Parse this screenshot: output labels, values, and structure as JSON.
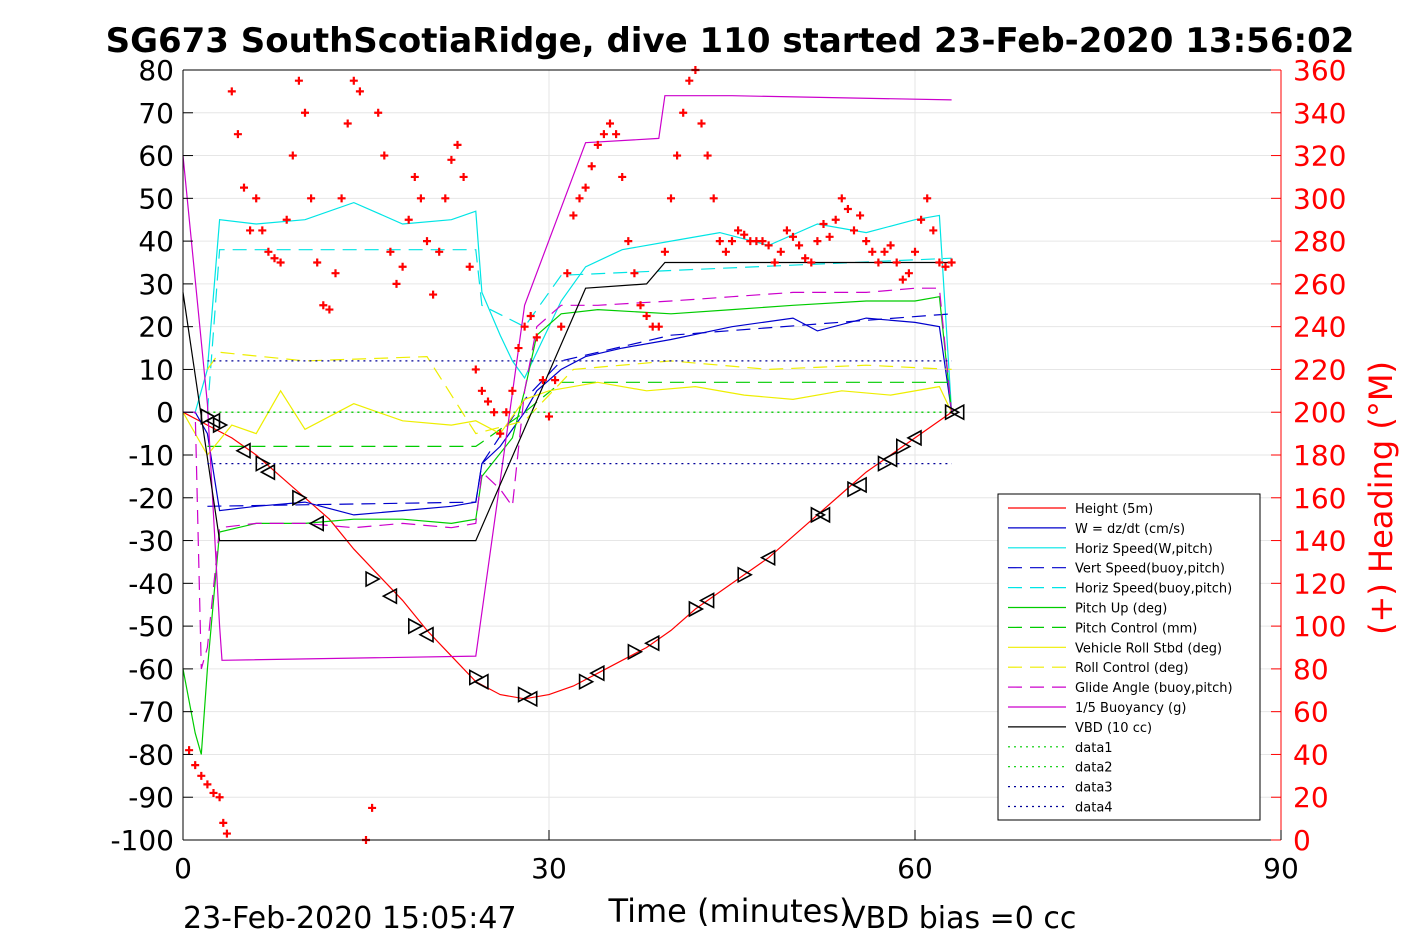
{
  "chart_data": {
    "type": "line",
    "title": "SG673 SouthScotiaRidge, dive 110 started 23-Feb-2020 13:56:02",
    "xlabel": "Time (minutes)",
    "ylabel_right": "(+) Heading (°M)",
    "footer_left": "23-Feb-2020 15:05:47",
    "footer_right": "VBD bias =0 cc",
    "xlim": [
      0,
      90
    ],
    "ylim": [
      -100,
      80
    ],
    "ylim_right": [
      0,
      360
    ],
    "xticks": [
      "0",
      "30",
      "60",
      "90"
    ],
    "yticks": [
      "80",
      "70",
      "60",
      "50",
      "40",
      "30",
      "20",
      "10",
      "0",
      "-10",
      "-20",
      "-30",
      "-40",
      "-50",
      "-60",
      "-70",
      "-80",
      "-90",
      "-100"
    ],
    "yticks_right": [
      "360",
      "340",
      "320",
      "300",
      "280",
      "260",
      "240",
      "220",
      "200",
      "180",
      "160",
      "140",
      "120",
      "100",
      "80",
      "60",
      "40",
      "20",
      "0"
    ],
    "grid": true,
    "legend_position": "bottom-right",
    "series": [
      {
        "name": "Height (5m)",
        "color": "#ff0000",
        "style": "solid",
        "x": [
          0,
          2,
          4,
          6,
          8,
          10,
          12,
          14,
          16,
          18,
          20,
          22,
          24,
          26,
          28,
          30,
          32,
          34,
          36,
          38,
          40,
          42,
          44,
          46,
          48,
          50,
          52,
          54,
          56,
          58,
          60,
          62,
          63
        ],
        "y": [
          0,
          -3,
          -6,
          -10,
          -15,
          -20,
          -25,
          -32,
          -38,
          -44,
          -51,
          -57,
          -63,
          -66,
          -67,
          -66,
          -64,
          -61,
          -58,
          -55,
          -51,
          -46,
          -42,
          -38,
          -34,
          -29,
          -24,
          -19,
          -14,
          -10,
          -6,
          -2,
          0
        ]
      },
      {
        "name": "W = dz/dt (cm/s)",
        "color": "#0000cc",
        "style": "solid",
        "x": [
          0,
          1,
          2,
          3,
          6,
          10,
          14,
          18,
          22,
          24,
          24.5,
          26,
          28,
          29,
          31,
          33,
          36,
          40,
          45,
          50,
          52,
          56,
          60,
          62,
          63
        ],
        "y": [
          0,
          0,
          -5,
          -23,
          -22,
          -21,
          -24,
          -23,
          -22,
          -21,
          -12,
          -8,
          0,
          5,
          10,
          13,
          15,
          17,
          20,
          22,
          19,
          22,
          21,
          20,
          0
        ]
      },
      {
        "name": "Horiz Speed(W,pitch)",
        "color": "#00e5e5",
        "style": "solid",
        "x": [
          0,
          1,
          2,
          3,
          6,
          10,
          14,
          18,
          22,
          24,
          24.5,
          26,
          27,
          28,
          29,
          31,
          33,
          36,
          40,
          44,
          48,
          52,
          56,
          60,
          62,
          63
        ],
        "y": [
          0,
          0,
          10,
          45,
          44,
          45,
          49,
          44,
          45,
          47,
          28,
          18,
          12,
          8,
          14,
          26,
          34,
          38,
          40,
          42,
          39,
          44,
          42,
          45,
          46,
          0
        ]
      },
      {
        "name": "Vert Speed(buoy,pitch)",
        "color": "#0000cc",
        "style": "dash",
        "x": [
          2,
          24,
          24.5,
          28,
          31,
          40,
          63
        ],
        "y": [
          -22,
          -21,
          -12,
          3,
          12,
          18,
          23
        ]
      },
      {
        "name": "Horiz Speed(buoy,pitch)",
        "color": "#00e5e5",
        "style": "dash",
        "x": [
          2,
          3,
          24,
          24.5,
          28,
          31,
          63
        ],
        "y": [
          0,
          38,
          38,
          25,
          20,
          32,
          36
        ]
      },
      {
        "name": "Pitch Up (deg)",
        "color": "#00cc00",
        "style": "solid",
        "x": [
          0,
          1,
          1.5,
          2,
          3,
          6,
          10,
          14,
          18,
          22,
          24,
          24.5,
          27,
          28,
          29,
          31,
          34,
          40,
          45,
          50,
          56,
          60,
          62,
          63
        ],
        "y": [
          -60,
          -75,
          -80,
          -60,
          -28,
          -26,
          -26,
          -25,
          -25,
          -26,
          -25,
          -15,
          -6,
          5,
          18,
          23,
          24,
          23,
          24,
          25,
          26,
          26,
          27,
          0
        ]
      },
      {
        "name": "Pitch Control (mm)",
        "color": "#00cc00",
        "style": "dash",
        "x": [
          2,
          24,
          24.5,
          28,
          31,
          63
        ],
        "y": [
          -8,
          -8,
          -7,
          0,
          7,
          7
        ]
      },
      {
        "name": "Vehicle Roll Stbd (deg)",
        "color": "#eeee00",
        "style": "solid",
        "x": [
          0,
          2,
          4,
          6,
          8,
          10,
          14,
          18,
          22,
          24,
          26,
          28,
          30,
          34,
          38,
          42,
          46,
          50,
          54,
          58,
          62,
          63
        ],
        "y": [
          0,
          -10,
          -3,
          -5,
          5,
          -4,
          2,
          -2,
          -3,
          -2,
          -5,
          3,
          5,
          7,
          5,
          6,
          4,
          3,
          5,
          4,
          6,
          0
        ]
      },
      {
        "name": "Roll Control (deg)",
        "color": "#eeee00",
        "style": "dash",
        "x": [
          2,
          3,
          10,
          20,
          24,
          28,
          32,
          40,
          48,
          56,
          63
        ],
        "y": [
          10,
          14,
          12,
          13,
          -5,
          -2,
          10,
          12,
          10,
          11,
          10
        ]
      },
      {
        "name": "Glide Angle (buoy,pitch)",
        "color": "#cc00cc",
        "style": "dash",
        "x": [
          0,
          1,
          1.5,
          2,
          3,
          6,
          10,
          14,
          18,
          22,
          24,
          24.5,
          26,
          27,
          28,
          29,
          31,
          34,
          40,
          45,
          50,
          56,
          60,
          62,
          63
        ],
        "y": [
          0,
          0,
          -60,
          -55,
          -27,
          -26,
          -26,
          -27,
          -26,
          -27,
          -26,
          -14,
          -18,
          -22,
          5,
          20,
          25,
          25,
          26,
          27,
          28,
          28,
          29,
          29,
          0
        ]
      },
      {
        "name": "1/5 Buoyancy (g)",
        "color": "#cc00cc",
        "style": "solid",
        "x": [
          0,
          2,
          3,
          3.2,
          24,
          28,
          33,
          39,
          39.5,
          45,
          63
        ],
        "y": [
          60,
          2,
          -50,
          -58,
          -57,
          25,
          63,
          64,
          74,
          74,
          73
        ]
      },
      {
        "name": "VBD (10 cc)",
        "color": "#000000",
        "style": "solid",
        "x": [
          0,
          3,
          24,
          33,
          38,
          39.5,
          46,
          63
        ],
        "y": [
          28,
          -30,
          -30,
          29,
          30,
          35,
          35,
          35
        ]
      },
      {
        "name": "data1",
        "color": "#00cc00",
        "style": "dot",
        "x": [
          2,
          63
        ],
        "y": [
          0,
          0
        ]
      },
      {
        "name": "data2",
        "color": "#00cc00",
        "style": "dot",
        "x": [
          2,
          63
        ],
        "y": [
          0,
          0
        ]
      },
      {
        "name": "data3",
        "color": "#000099",
        "style": "dot",
        "x": [
          2,
          63
        ],
        "y": [
          12,
          12
        ]
      },
      {
        "name": "data4",
        "color": "#000099",
        "style": "dot",
        "x": [
          2,
          63
        ],
        "y": [
          -12,
          -12
        ]
      }
    ],
    "heading": {
      "name": "(+) Heading (°M)",
      "color": "#ff0000",
      "marker": "+",
      "x": [
        0.5,
        1,
        1.5,
        2,
        2.5,
        3,
        3.3,
        3.6,
        4,
        4.5,
        5,
        5.5,
        6,
        6.5,
        7,
        7.5,
        8,
        8.5,
        9,
        9.5,
        10,
        10.5,
        11,
        11.5,
        12,
        12.5,
        13,
        13.5,
        14,
        14.5,
        15,
        15.5,
        16,
        16.5,
        17,
        17.5,
        18,
        18.5,
        19,
        19.5,
        20,
        20.5,
        21,
        21.5,
        22,
        22.5,
        23,
        23.5,
        24,
        24.5,
        25,
        25.5,
        26,
        26.5,
        27,
        27.5,
        28,
        28.5,
        29,
        29.5,
        30,
        30.5,
        31,
        31.5,
        32,
        32.5,
        33,
        33.5,
        34,
        34.5,
        35,
        35.5,
        36,
        36.5,
        37,
        37.5,
        38,
        38.5,
        39,
        39.5,
        40,
        40.5,
        41,
        41.5,
        42,
        42.5,
        43,
        43.5,
        44,
        44.5,
        45,
        45.5,
        46,
        46.5,
        47,
        47.5,
        48,
        48.5,
        49,
        49.5,
        50,
        50.5,
        51,
        51.5,
        52,
        52.5,
        53,
        53.5,
        54,
        54.5,
        55,
        55.5,
        56,
        56.5,
        57,
        57.5,
        58,
        58.5,
        59,
        59.5,
        60,
        60.5,
        61,
        61.5,
        62,
        62.5,
        63
      ],
      "y": [
        42,
        35,
        30,
        26,
        22,
        20,
        8,
        3,
        350,
        330,
        305,
        285,
        300,
        285,
        275,
        272,
        270,
        290,
        320,
        355,
        340,
        300,
        270,
        250,
        248,
        265,
        300,
        335,
        355,
        350,
        0,
        15,
        340,
        320,
        275,
        260,
        268,
        290,
        310,
        300,
        280,
        255,
        275,
        300,
        318,
        325,
        310,
        268,
        220,
        210,
        205,
        200,
        190,
        200,
        210,
        230,
        240,
        245,
        235,
        215,
        198,
        215,
        240,
        265,
        292,
        300,
        305,
        315,
        325,
        330,
        335,
        330,
        310,
        280,
        265,
        250,
        245,
        240,
        240,
        275,
        300,
        320,
        340,
        355,
        360,
        335,
        320,
        300,
        280,
        275,
        280,
        285,
        283,
        280,
        280,
        280,
        278,
        270,
        275,
        285,
        282,
        278,
        272,
        270,
        280,
        288,
        282,
        290,
        300,
        295,
        285,
        292,
        280,
        275,
        270,
        275,
        278,
        270,
        262,
        265,
        275,
        290,
        300,
        285,
        270,
        268,
        270
      ]
    },
    "arrows": {
      "marker": "triangle",
      "x": [
        2,
        2.5,
        3,
        5,
        6.5,
        7,
        9.5,
        11,
        15.5,
        17,
        19,
        20,
        24,
        24.5,
        28,
        28.5,
        33,
        34,
        37,
        38.5,
        42,
        43,
        46,
        48,
        52,
        52.5,
        55,
        55.5,
        57.5,
        58,
        59,
        60,
        63,
        63.5
      ],
      "y": [
        -1,
        -2,
        -3,
        -9,
        -12,
        -14,
        -20,
        -26,
        -39,
        -43,
        -50,
        -52,
        -62,
        -63,
        -66,
        -67,
        -63,
        -61,
        -56,
        -54,
        -46,
        -44,
        -38,
        -34,
        -24,
        -24,
        -18,
        -17,
        -12,
        -11,
        -8,
        -6,
        0,
        0
      ]
    }
  }
}
